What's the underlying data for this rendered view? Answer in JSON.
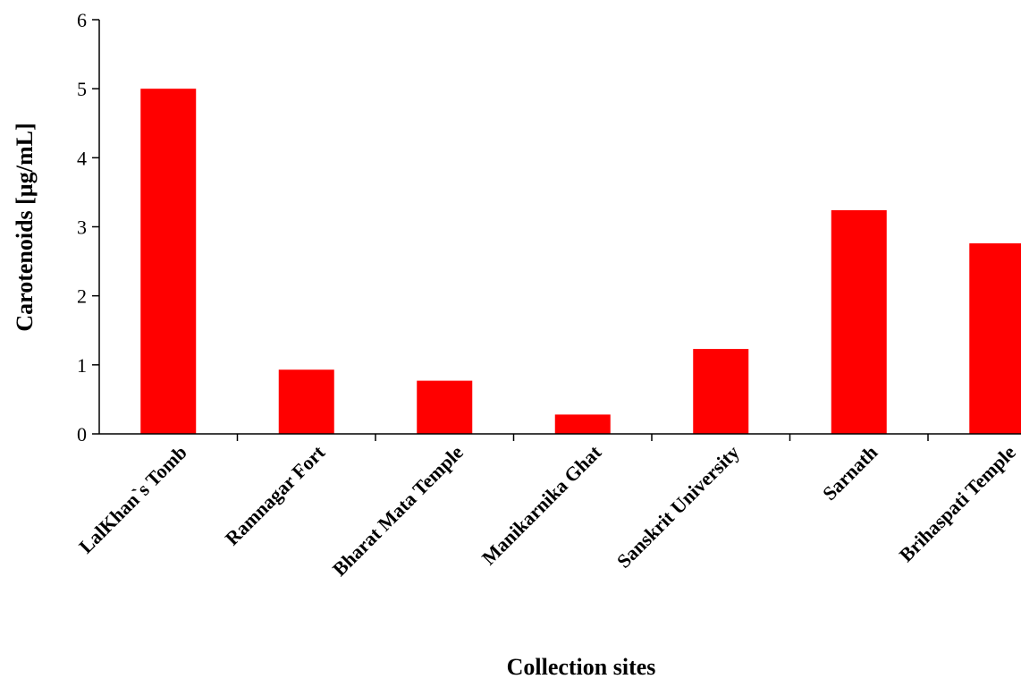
{
  "chart_data": {
    "type": "bar",
    "title": "",
    "xlabel": "Collection sites",
    "ylabel": "Carotenoids [µg/mL]",
    "categories": [
      "LalKhan`s Tomb",
      "Ramnagar Fort",
      "Bharat Mata Temple",
      "Manikarnika Ghat",
      "Sanskrit University",
      "Sarnath",
      "Brihaspati Temple"
    ],
    "values": [
      5.0,
      0.93,
      0.77,
      0.28,
      1.23,
      3.24,
      2.76
    ],
    "ylim": [
      0,
      6
    ],
    "yticks": [
      "0",
      "1",
      "2",
      "3",
      "4",
      "5",
      "6"
    ],
    "grid": false,
    "legend": "none",
    "bar_color": "#ff0000"
  }
}
